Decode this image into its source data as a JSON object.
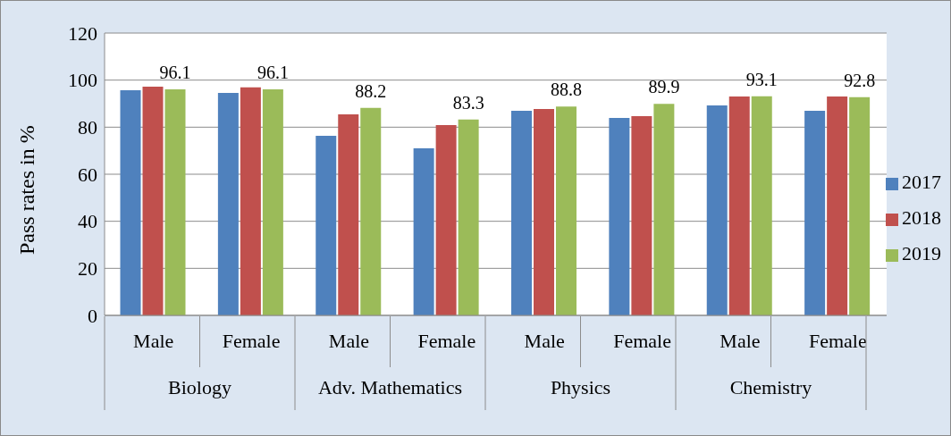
{
  "chart_data": {
    "type": "bar",
    "ylabel": "Pass rates in %",
    "categories": [
      "Male",
      "Female",
      "Male",
      "Female",
      "Male",
      "Female",
      "Male",
      "Female"
    ],
    "annotations": [
      "Biology",
      "Adv. Mathematics",
      "Physics",
      "Chemistry"
    ],
    "series": [
      {
        "name": "2017",
        "color": "#4f81bd",
        "values": [
          95.7,
          94.6,
          76.3,
          71.0,
          87.0,
          83.9,
          89.2,
          87.0
        ]
      },
      {
        "name": "2018",
        "color": "#c0504d",
        "values": [
          97.2,
          96.9,
          85.4,
          80.9,
          87.7,
          84.7,
          93.0,
          93.0
        ]
      },
      {
        "name": "2019",
        "color": "#9bbb59",
        "values": [
          96.1,
          96.1,
          88.2,
          83.3,
          88.8,
          89.9,
          93.1,
          92.8
        ],
        "value_labels": [
          "96.1",
          "96.1",
          "88.2",
          "83.3",
          "88.8",
          "89.9",
          "93.1",
          "92.8"
        ]
      }
    ],
    "ylim": [
      0,
      120
    ],
    "yticks": [
      0,
      20,
      40,
      60,
      80,
      100,
      120
    ],
    "grid": "y",
    "legend": "right"
  }
}
